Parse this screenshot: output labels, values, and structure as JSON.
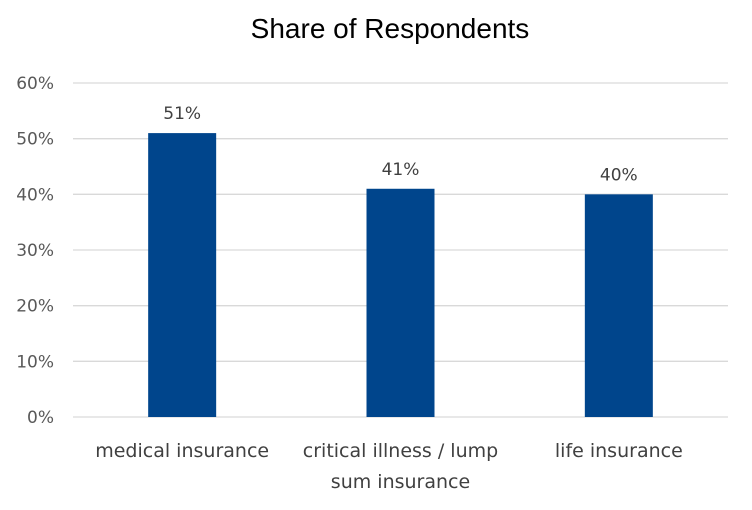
{
  "chart_data": {
    "type": "bar",
    "title": "Share of Respondents",
    "categories": [
      [
        "medical insurance"
      ],
      [
        "critical illness / lump",
        "sum insurance"
      ],
      [
        "life insurance"
      ]
    ],
    "values": [
      51,
      41,
      40
    ],
    "data_labels": [
      "51%",
      "41%",
      "40%"
    ],
    "ylim": [
      0,
      60
    ],
    "yticks": [
      0,
      10,
      20,
      30,
      40,
      50,
      60
    ],
    "ytick_labels": [
      "0%",
      "10%",
      "20%",
      "30%",
      "40%",
      "50%",
      "60%"
    ],
    "grid": true,
    "legend": "none",
    "colors": {
      "bar": "#00458C",
      "grid": "#D9D9D9"
    }
  }
}
